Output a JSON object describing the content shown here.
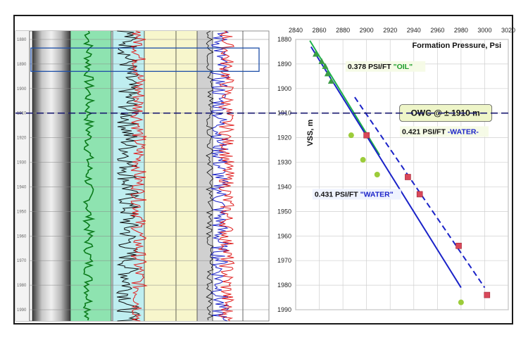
{
  "chart_data": {
    "type": "scatter",
    "title": "Formation Pressure, Psi",
    "ylabel": "VSS, m",
    "xlim": [
      2840,
      3020
    ],
    "ylim": [
      1880,
      1990
    ],
    "x_ticks": [
      2840,
      2860,
      2880,
      2900,
      2920,
      2940,
      2960,
      2980,
      3000,
      3020
    ],
    "y_ticks": [
      1880,
      1890,
      1900,
      1910,
      1920,
      1930,
      1940,
      1950,
      1960,
      1970,
      1980,
      1990
    ],
    "log_depth_ticks": [
      1880,
      1890,
      1900,
      1910,
      1920,
      1930,
      1940,
      1950,
      1960,
      1970,
      1980,
      1990
    ],
    "series": [
      {
        "marker": "triangle",
        "color": "#3a9b45",
        "points": [
          [
            2857,
            1886
          ],
          [
            2862,
            1889
          ],
          [
            2865,
            1891
          ],
          [
            2867,
            1894
          ],
          [
            2870,
            1897
          ]
        ]
      },
      {
        "marker": "circle",
        "color": "#9ccc3a",
        "points": [
          [
            2887,
            1919
          ],
          [
            2897,
            1929
          ],
          [
            2909,
            1935
          ],
          [
            2980,
            1987
          ]
        ]
      },
      {
        "marker": "square",
        "color": "#d9485a",
        "points": [
          [
            2900,
            1919
          ],
          [
            2935,
            1936
          ],
          [
            2945,
            1943
          ],
          [
            2978,
            1964
          ],
          [
            3002,
            1984
          ]
        ]
      }
    ],
    "trend_lines": [
      {
        "label_value": "0.378 PSI/FT ",
        "label_fluid": "\"OIL\"",
        "color": "#1db04a",
        "style": "solid",
        "from": [
          2852,
          1880.5
        ],
        "to": [
          2911,
          1927
        ]
      },
      {
        "label_value": "0.421 PSI/FT ",
        "label_fluid": "-WATER-",
        "color": "#1a22c8",
        "style": "dashed",
        "from": [
          2890,
          1903.5
        ],
        "to": [
          3000,
          1981
        ]
      },
      {
        "label_value": "0.431 PSI/FT ",
        "label_fluid": "\"WATER\"",
        "color": "#1a22c8",
        "style": "solid",
        "from": [
          2853,
          1883
        ],
        "to": [
          2980,
          1981
        ]
      }
    ],
    "owc_label": "OWC @ ± 1910 m",
    "owc_depth": 1910
  }
}
